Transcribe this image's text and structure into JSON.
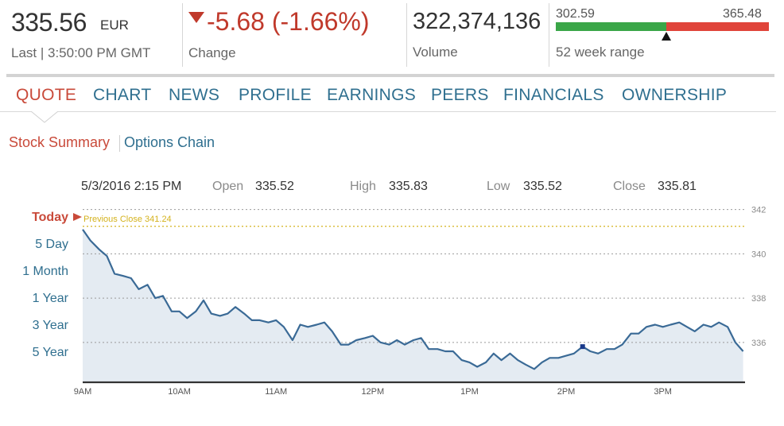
{
  "price": {
    "value": "335.56",
    "currency": "EUR",
    "last": "Last | 3:50:00 PM GMT"
  },
  "change": {
    "value": "-5.68 (-1.66%)",
    "label": "Change",
    "color": "#c0392b"
  },
  "volume": {
    "value": "322,374,136",
    "label": "Volume"
  },
  "week_range": {
    "low": "302.59",
    "high": "365.48",
    "label": "52 week range",
    "position": 0.52
  },
  "nav": {
    "tabs": [
      {
        "label": "QUOTE"
      },
      {
        "label": "CHART"
      },
      {
        "label": "NEWS"
      },
      {
        "label": "PROFILE"
      },
      {
        "label": "EARNINGS"
      },
      {
        "label": "PEERS"
      },
      {
        "label": "FINANCIALS"
      },
      {
        "label": "OWNERSHIP"
      }
    ],
    "active": "QUOTE"
  },
  "subnav": {
    "items": [
      {
        "label": "Stock Summary"
      },
      {
        "label": "Options Chain"
      }
    ],
    "active": "Stock Summary"
  },
  "ohlc": {
    "datetime": "5/3/2016 2:15 PM",
    "open_label": "Open",
    "open": "335.52",
    "high_label": "High",
    "high": "335.83",
    "low_label": "Low",
    "low": "335.52",
    "close_label": "Close",
    "close": "335.81"
  },
  "ranges": [
    {
      "label": "Today"
    },
    {
      "label": "5 Day"
    },
    {
      "label": "1 Month"
    },
    {
      "label": "1 Year"
    },
    {
      "label": "3 Year"
    },
    {
      "label": "5 Year"
    }
  ],
  "colors": {
    "accent": "#c94a3a",
    "link": "#2f6f8f",
    "line": "#3a6a96",
    "area": "#e4ebf2",
    "prev_close": "#d4b21d",
    "range_green": "#3aa648",
    "range_red": "#e0443a"
  },
  "chart_data": {
    "type": "area",
    "previous_close_label": "Previous Close 341.24",
    "previous_close": 341.24,
    "x_ticks": [
      "9AM",
      "10AM",
      "11AM",
      "12PM",
      "1PM",
      "2PM",
      "3PM"
    ],
    "x_tick_hours": [
      9,
      10,
      11,
      12,
      13,
      14,
      15
    ],
    "y_ticks": [
      "342",
      "340",
      "338",
      "336"
    ],
    "y_tick_values": [
      342,
      340,
      338,
      336
    ],
    "ylim": [
      334.2,
      342.2
    ],
    "xlim": [
      9.0,
      15.85
    ],
    "grid": true,
    "selected_point": {
      "hour": 14.17,
      "value": 335.81
    },
    "series": [
      {
        "x": [
          9.0,
          9.08,
          9.17,
          9.25,
          9.33,
          9.42,
          9.5,
          9.58,
          9.67,
          9.75,
          9.83,
          9.92,
          10.0,
          10.08,
          10.17,
          10.25,
          10.33,
          10.42,
          10.5,
          10.58,
          10.67,
          10.75,
          10.83,
          10.92,
          11.0,
          11.08,
          11.17,
          11.25,
          11.33,
          11.42,
          11.5,
          11.58,
          11.67,
          11.75,
          11.83,
          11.92,
          12.0,
          12.08,
          12.17,
          12.25,
          12.33,
          12.42,
          12.5,
          12.58,
          12.67,
          12.75,
          12.83,
          12.92,
          13.0,
          13.08,
          13.17,
          13.25,
          13.33,
          13.42,
          13.5,
          13.58,
          13.67,
          13.75,
          13.83,
          13.92,
          14.0,
          14.08,
          14.17,
          14.25,
          14.33,
          14.42,
          14.5,
          14.58,
          14.67,
          14.75,
          14.83,
          14.92,
          15.0,
          15.08,
          15.17,
          15.25,
          15.33,
          15.42,
          15.5,
          15.58,
          15.67,
          15.75,
          15.83
        ],
        "values": [
          341.1,
          340.6,
          340.2,
          339.9,
          339.1,
          339.0,
          338.9,
          338.4,
          338.6,
          338.0,
          338.1,
          337.4,
          337.4,
          337.1,
          337.4,
          337.9,
          337.3,
          337.2,
          337.3,
          337.6,
          337.3,
          337.0,
          337.0,
          336.9,
          337.0,
          336.7,
          336.1,
          336.8,
          336.7,
          336.8,
          336.9,
          336.5,
          335.9,
          335.9,
          336.1,
          336.2,
          336.3,
          336.0,
          335.9,
          336.1,
          335.9,
          336.1,
          336.2,
          335.7,
          335.7,
          335.6,
          335.6,
          335.2,
          335.1,
          334.9,
          335.1,
          335.5,
          335.2,
          335.5,
          335.2,
          335.0,
          334.8,
          335.1,
          335.3,
          335.3,
          335.4,
          335.5,
          335.81,
          335.6,
          335.5,
          335.7,
          335.7,
          335.9,
          336.4,
          336.4,
          336.7,
          336.8,
          336.7,
          336.8,
          336.9,
          336.7,
          336.5,
          336.8,
          336.7,
          336.9,
          336.7,
          336.0,
          335.6
        ]
      }
    ]
  }
}
